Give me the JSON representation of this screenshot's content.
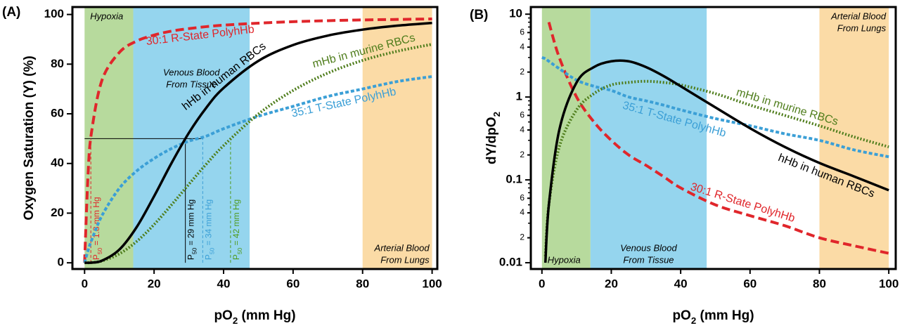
{
  "chart_data": [
    {
      "type": "line",
      "panel": "(A)",
      "xlabel": [
        {
          "text": "pO"
        },
        {
          "sub": "2"
        },
        {
          "text": " (mm Hg)"
        }
      ],
      "ylabel": [
        {
          "text": "Oxygen Saturation (Y) (%)"
        }
      ],
      "x": [
        0,
        1,
        2,
        5,
        10,
        15,
        20,
        25,
        30,
        35,
        40,
        50,
        60,
        70,
        80,
        90,
        100
      ],
      "series": [
        {
          "name": "30:1 R-State PolyhHb",
          "color": "#e0262b",
          "style": "dashed",
          "values": [
            0,
            35.7,
            52.6,
            73.5,
            84.7,
            89.3,
            91.7,
            93.3,
            94.3,
            95.1,
            95.7,
            96.5,
            97.1,
            97.5,
            97.8,
            98.0,
            98.2
          ]
        },
        {
          "name": "35:1 T-State PolyhHb",
          "color": "#3b9fd6",
          "style": "dotted",
          "values": [
            0,
            5,
            9,
            19,
            30,
            37,
            42,
            46,
            49,
            51,
            54,
            59,
            63,
            67,
            70,
            73,
            75
          ]
        },
        {
          "name": "mHb in murine RBCs",
          "color": "#4f7d1c",
          "style": "dots",
          "values": [
            0,
            0.02,
            0.09,
            0.74,
            3.6,
            8.6,
            15.4,
            23.3,
            31.6,
            39.7,
            47.2,
            59.9,
            69.4,
            76.4,
            81.5,
            85.2,
            88.0
          ]
        },
        {
          "name": "hHb in human RBCs",
          "color": "#000000",
          "style": "solid",
          "values": [
            0,
            0.01,
            0.07,
            0.86,
            5.3,
            14.4,
            26.8,
            40.1,
            52.3,
            62.4,
            70.4,
            81.3,
            87.7,
            91.5,
            93.9,
            95.5,
            96.6
          ]
        }
      ],
      "xlim": [
        -3.5,
        101.5
      ],
      "ylim": [
        -2.5,
        103
      ],
      "xticks": [
        0,
        20,
        40,
        60,
        80,
        100
      ],
      "yticks": [
        0,
        20,
        40,
        60,
        80,
        100
      ],
      "bands": [
        {
          "x0": 0,
          "x1": 14,
          "color": "#b7da9d",
          "label": [
            "Hypoxia"
          ]
        },
        {
          "x0": 14,
          "x1": 47.5,
          "color": "#95d5ee",
          "label": [
            "Venous Blood",
            "From Tissue"
          ]
        },
        {
          "x0": 80,
          "x1": 100,
          "color": "#fbdba6",
          "label": [
            "Arterial Blood",
            "From Lungs"
          ]
        }
      ],
      "p50_hline": {
        "y": 50,
        "x0": 0,
        "x1": 34
      },
      "p50_lines": [
        {
          "x": 1.8,
          "y": 50,
          "color": "#e0262b",
          "label": [
            {
              "text": "P"
            },
            {
              "sub": "50"
            },
            {
              "text": " = 1.8 mm Hg"
            }
          ]
        },
        {
          "x": 29,
          "y": 50,
          "color": "#000000",
          "label": [
            {
              "text": "P"
            },
            {
              "sub": "50"
            },
            {
              "text": " = 29 mm Hg"
            }
          ]
        },
        {
          "x": 34,
          "y": 50,
          "color": "#3b9fd6",
          "label": [
            {
              "text": "P"
            },
            {
              "sub": "50"
            },
            {
              "text": " = 34 mm Hg"
            }
          ]
        },
        {
          "x": 42,
          "y": 50,
          "color": "#4f9a1c",
          "label": [
            {
              "text": "P"
            },
            {
              "sub": "50"
            },
            {
              "text": " = 42 mm Hg"
            }
          ]
        }
      ]
    },
    {
      "type": "line",
      "panel": "(B)",
      "log_y": true,
      "xlabel": [
        {
          "text": "pO"
        },
        {
          "sub": "2"
        },
        {
          "text": " (mm Hg)"
        }
      ],
      "ylabel": [
        {
          "text": "dY/dpO"
        },
        {
          "sub": "2"
        }
      ],
      "x": [
        0,
        1,
        2,
        5,
        10,
        15,
        20,
        25,
        30,
        35,
        40,
        50,
        60,
        70,
        80,
        90,
        100
      ],
      "series": [
        {
          "name": "30:1 R-State PolyhHb",
          "color": "#e0262b",
          "style": "dashed",
          "values": [
            null,
            null,
            8,
            3,
            1.0,
            0.5,
            0.3,
            0.2,
            0.15,
            0.11,
            0.08,
            0.05,
            0.037,
            0.028,
            0.02,
            0.016,
            0.013
          ]
        },
        {
          "name": "35:1 T-State PolyhHb",
          "color": "#3b9fd6",
          "style": "dotted",
          "values": [
            3.0,
            2.9,
            2.7,
            2.2,
            1.6,
            1.35,
            1.2,
            1.0,
            0.9,
            0.8,
            0.7,
            0.55,
            0.45,
            0.36,
            0.3,
            0.23,
            0.19
          ]
        },
        {
          "name": "mHb in murine RBCs",
          "color": "#4f7d1c",
          "style": "dots",
          "values": [
            null,
            0.012,
            0.05,
            0.25,
            0.7,
            1.1,
            1.4,
            1.5,
            1.55,
            1.5,
            1.4,
            1.1,
            0.8,
            0.6,
            0.45,
            0.33,
            0.25
          ]
        },
        {
          "name": "hHb in human RBCs",
          "color": "#000000",
          "style": "solid",
          "values": [
            null,
            0.01,
            0.05,
            0.4,
            1.5,
            2.3,
            2.7,
            2.7,
            2.3,
            1.8,
            1.35,
            0.75,
            0.42,
            0.25,
            0.16,
            0.11,
            0.075
          ]
        }
      ],
      "xlim": [
        -3.2,
        102
      ],
      "ylim": [
        0.0084,
        12.2
      ],
      "xticks": [
        0,
        20,
        40,
        60,
        80,
        100
      ],
      "yticks": [
        0.01,
        {
          "value": 0.02,
          "label": "2"
        },
        {
          "value": 0.04,
          "label": "4"
        },
        {
          "value": 0.06,
          "label": "6"
        },
        0.1,
        {
          "value": 0.2,
          "label": "2"
        },
        {
          "value": 0.4,
          "label": "4"
        },
        {
          "value": 0.6,
          "label": "6"
        },
        1,
        2,
        4,
        6,
        10
      ],
      "yminor": [
        0.03,
        0.05,
        0.07,
        0.08,
        0.09,
        0.3,
        0.5,
        0.7,
        0.8,
        0.9,
        3,
        5,
        7,
        8,
        9
      ],
      "bands": [
        {
          "x0": 0,
          "x1": 14,
          "color": "#b7da9d",
          "label": [
            "Hypoxia"
          ]
        },
        {
          "x0": 14,
          "x1": 47.5,
          "color": "#95d5ee",
          "label": [
            "Venous Blood",
            "From Tissue"
          ]
        },
        {
          "x0": 80,
          "x1": 100,
          "color": "#fbdba6",
          "label": [
            "Arterial Blood",
            "From Lungs"
          ]
        }
      ]
    }
  ]
}
